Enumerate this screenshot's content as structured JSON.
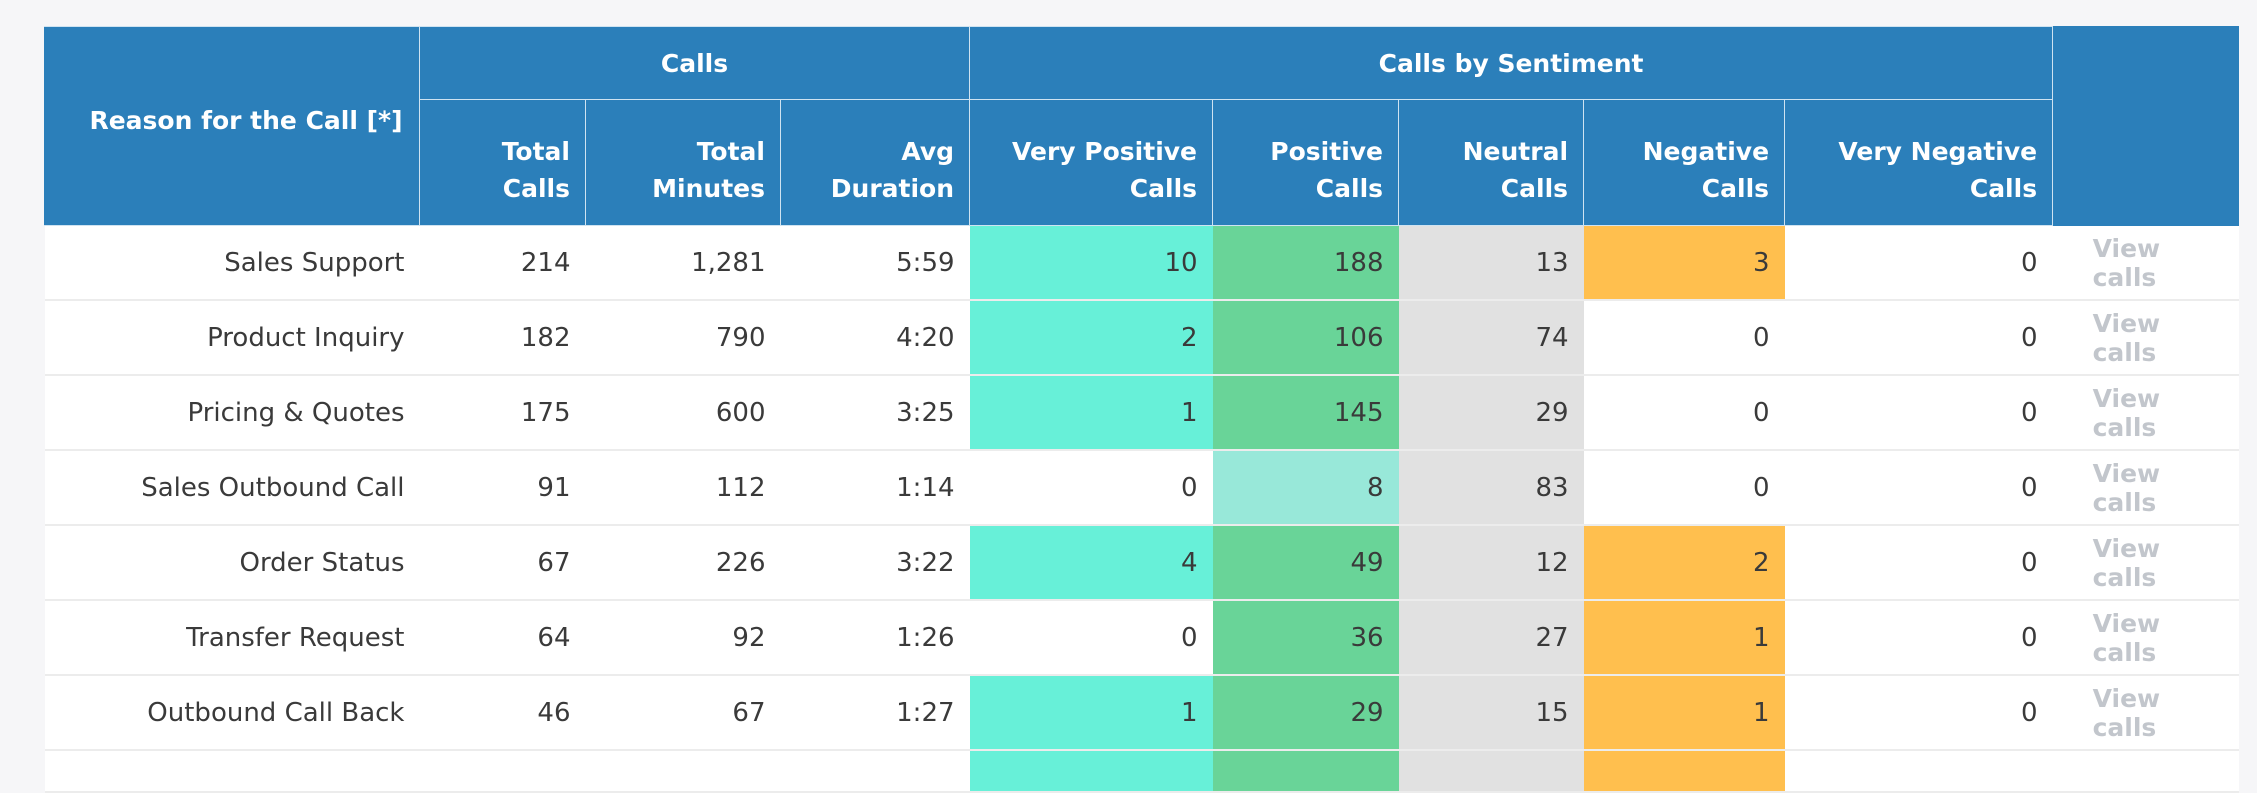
{
  "table": {
    "header": {
      "reason": "Reason for the Call [*]",
      "calls_group": "Calls",
      "sentiment_group": "Calls by Sentiment",
      "total_calls": "Total\nCalls",
      "total_minutes": "Total\nMinutes",
      "avg_duration": "Avg\nDuration",
      "very_positive": "Very Positive\nCalls",
      "positive": "Positive\nCalls",
      "neutral": "Neutral\nCalls",
      "negative": "Negative\nCalls",
      "very_negative": "Very Negative\nCalls"
    },
    "view_label": "View calls",
    "colors": {
      "header_bg": "#2b7fba",
      "very_positive": "#67f0d8",
      "positive": "#69d498",
      "positive_low": "#98e8d9",
      "neutral": "#e1e1e1",
      "negative": "#ffbf4e"
    },
    "rows": [
      {
        "reason": "Sales Support",
        "total_calls": "214",
        "total_minutes": "1,281",
        "avg_duration": "5:59",
        "very_positive": "10",
        "positive": "188",
        "neutral": "13",
        "negative": "3",
        "very_negative": "0"
      },
      {
        "reason": "Product Inquiry",
        "total_calls": "182",
        "total_minutes": "790",
        "avg_duration": "4:20",
        "very_positive": "2",
        "positive": "106",
        "neutral": "74",
        "negative": "0",
        "very_negative": "0"
      },
      {
        "reason": "Pricing & Quotes",
        "total_calls": "175",
        "total_minutes": "600",
        "avg_duration": "3:25",
        "very_positive": "1",
        "positive": "145",
        "neutral": "29",
        "negative": "0",
        "very_negative": "0"
      },
      {
        "reason": "Sales Outbound Call",
        "total_calls": "91",
        "total_minutes": "112",
        "avg_duration": "1:14",
        "very_positive": "0",
        "positive": "8",
        "neutral": "83",
        "negative": "0",
        "very_negative": "0"
      },
      {
        "reason": "Order Status",
        "total_calls": "67",
        "total_minutes": "226",
        "avg_duration": "3:22",
        "very_positive": "4",
        "positive": "49",
        "neutral": "12",
        "negative": "2",
        "very_negative": "0"
      },
      {
        "reason": "Transfer Request",
        "total_calls": "64",
        "total_minutes": "92",
        "avg_duration": "1:26",
        "very_positive": "0",
        "positive": "36",
        "neutral": "27",
        "negative": "1",
        "very_negative": "0"
      },
      {
        "reason": "Outbound Call Back",
        "total_calls": "46",
        "total_minutes": "67",
        "avg_duration": "1:27",
        "very_positive": "1",
        "positive": "29",
        "neutral": "15",
        "negative": "1",
        "very_negative": "0"
      }
    ]
  }
}
